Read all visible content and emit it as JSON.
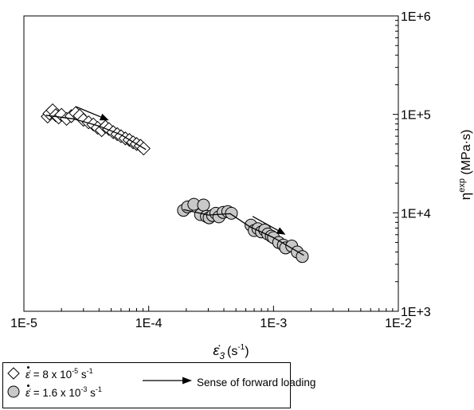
{
  "chart_data": {
    "type": "scatter",
    "x_scale": "log",
    "y_scale": "log",
    "xlim": [
      1e-05,
      0.01
    ],
    "ylim": [
      1000,
      1000000
    ],
    "x_ticks": [
      1e-05,
      0.0001,
      0.001,
      0.01
    ],
    "x_tick_labels": [
      "1E-5",
      "1E-4",
      "1E-3",
      "1E-2"
    ],
    "y_ticks": [
      1000,
      10000,
      100000,
      1000000
    ],
    "y_tick_labels": [
      "1E+3",
      "1E+4",
      "1E+5",
      "1E+6"
    ],
    "y_axis_side": "right",
    "xlabel_symbol": "ε̇",
    "xlabel_subscript": "3",
    "xlabel_unit": "(s",
    "xlabel_unit_exp": "-1",
    "xlabel_unit_close": ")",
    "ylabel_symbol": "η",
    "ylabel_sup": "exp",
    "ylabel_unit": " (MPa·s)",
    "grid": false,
    "series": [
      {
        "marker": "open-diamond",
        "fill": "#ffffff",
        "points": [
          [
            1.55e-05,
            95000
          ],
          [
            1.6e-05,
            102000
          ],
          [
            1.7e-05,
            110000
          ],
          [
            1.8e-05,
            98000
          ],
          [
            1.9e-05,
            93000
          ],
          [
            2e-05,
            99000
          ],
          [
            2.2e-05,
            90000
          ],
          [
            2.4e-05,
            96000
          ],
          [
            2.6e-05,
            103000
          ],
          [
            2.8e-05,
            97000
          ],
          [
            3e-05,
            88000
          ],
          [
            3.3e-05,
            83000
          ],
          [
            3.6e-05,
            79000
          ],
          [
            3.9e-05,
            73000
          ],
          [
            4.2e-05,
            69000
          ],
          [
            4.5e-05,
            75000
          ],
          [
            4.8e-05,
            71000
          ],
          [
            5.2e-05,
            66000
          ],
          [
            5.6e-05,
            63000
          ],
          [
            6e-05,
            60000
          ],
          [
            6.5e-05,
            57000
          ],
          [
            7e-05,
            55000
          ],
          [
            7.5e-05,
            52000
          ],
          [
            8e-05,
            50000
          ],
          [
            8.6e-05,
            48000
          ],
          [
            9.1e-05,
            45000
          ]
        ],
        "trend": [
          [
            1.5e-05,
            98000
          ],
          [
            2.5e-05,
            90000
          ],
          [
            4e-05,
            76000
          ],
          [
            6e-05,
            62000
          ],
          [
            9.5e-05,
            44000
          ]
        ],
        "arrow_from": [
          2.6e-05,
          120000
        ],
        "arrow_to": [
          4.8e-05,
          87000
        ]
      },
      {
        "marker": "filled-circle",
        "fill": "#c8c8c8",
        "points": [
          [
            0.00019,
            10600
          ],
          [
            0.000205,
            11500
          ],
          [
            0.00023,
            12200
          ],
          [
            0.00026,
            9600
          ],
          [
            0.000275,
            12000
          ],
          [
            0.00029,
            9200
          ],
          [
            0.000305,
            8900
          ],
          [
            0.000325,
            9400
          ],
          [
            0.000345,
            9900
          ],
          [
            0.000365,
            9100
          ],
          [
            0.000395,
            10100
          ],
          [
            0.00043,
            10300
          ],
          [
            0.00046,
            9900
          ],
          [
            0.00066,
            7500
          ],
          [
            0.0007,
            6600
          ],
          [
            0.00075,
            6900
          ],
          [
            0.0008,
            6400
          ],
          [
            0.00085,
            6700
          ],
          [
            0.0009,
            6100
          ],
          [
            0.00096,
            5800
          ],
          [
            0.001,
            5600
          ],
          [
            0.0011,
            5000
          ],
          [
            0.0012,
            4700
          ],
          [
            0.00125,
            4400
          ],
          [
            0.0014,
            4600
          ],
          [
            0.00155,
            4000
          ],
          [
            0.0017,
            3600
          ]
        ],
        "trend": [
          [
            0.00019,
            10800
          ],
          [
            0.0003,
            9500
          ],
          [
            0.00045,
            9800
          ],
          [
            0.00065,
            7200
          ],
          [
            0.001,
            5600
          ],
          [
            0.00175,
            3700
          ]
        ],
        "arrow_from": [
          0.00068,
          9200
        ],
        "arrow_to": [
          0.00125,
          6000
        ]
      }
    ]
  },
  "legend": {
    "rows": [
      {
        "marker": "open-diamond",
        "symbol": "ε̇",
        "text_pre": " = 8 x 10",
        "exp": "-5",
        "unit": " s",
        "unit_exp": "-1"
      },
      {
        "marker": "filled-circle",
        "symbol": "ε̇",
        "text_pre": " = 1.6 x 10",
        "exp": "-3",
        "unit": " s",
        "unit_exp": "-1"
      }
    ],
    "arrow_text": "Sense of forward loading"
  }
}
